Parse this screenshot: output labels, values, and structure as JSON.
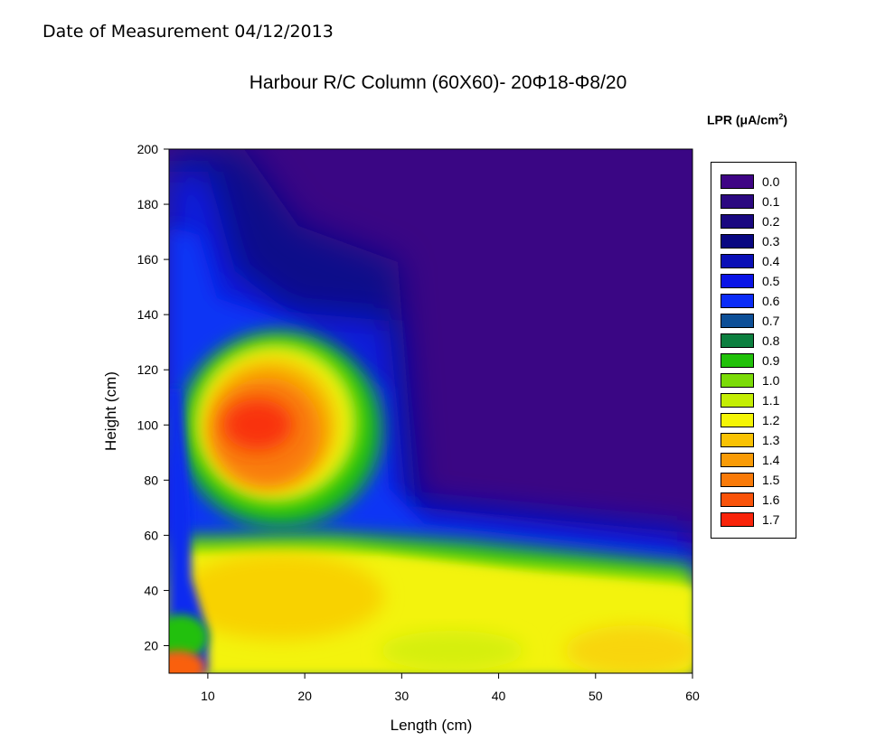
{
  "header": {
    "date_text": "Date of Measurement 04/12/2013"
  },
  "chart_data": {
    "type": "heatmap",
    "title": "Harbour R/C Column (60X60)- 20Φ18-Φ8/20",
    "xlabel": "Length (cm)",
    "ylabel": "Height (cm)",
    "xlim": [
      6,
      60
    ],
    "ylim": [
      10,
      200
    ],
    "xticks": [
      10,
      20,
      30,
      40,
      50,
      60
    ],
    "yticks": [
      20,
      40,
      60,
      80,
      100,
      120,
      140,
      160,
      180,
      200
    ],
    "grid": false,
    "legend_placement": "right",
    "legend": {
      "title": "LPR (μA/cm",
      "title_sup": "2",
      "title_close": ")",
      "levels": [
        {
          "label": "0.0",
          "value": 0.0,
          "color": "#3f0585"
        },
        {
          "label": "0.1",
          "value": 0.1,
          "color": "#2b0880"
        },
        {
          "label": "0.2",
          "value": 0.2,
          "color": "#190880"
        },
        {
          "label": "0.3",
          "value": 0.3,
          "color": "#090781"
        },
        {
          "label": "0.4",
          "value": 0.4,
          "color": "#0a0fb6"
        },
        {
          "label": "0.5",
          "value": 0.5,
          "color": "#0a14e6"
        },
        {
          "label": "0.6",
          "value": 0.6,
          "color": "#0b2cf7"
        },
        {
          "label": "0.7",
          "value": 0.7,
          "color": "#0d4f97"
        },
        {
          "label": "0.8",
          "value": 0.8,
          "color": "#0c7f3f"
        },
        {
          "label": "0.9",
          "value": 0.9,
          "color": "#21c10a"
        },
        {
          "label": "1.0",
          "value": 1.0,
          "color": "#7bdb08"
        },
        {
          "label": "1.1",
          "value": 1.1,
          "color": "#c4ee04"
        },
        {
          "label": "1.2",
          "value": 1.2,
          "color": "#f4f506"
        },
        {
          "label": "1.3",
          "value": 1.3,
          "color": "#f9c204"
        },
        {
          "label": "1.4",
          "value": 1.4,
          "color": "#f99b07"
        },
        {
          "label": "1.5",
          "value": 1.5,
          "color": "#f97a09"
        },
        {
          "label": "1.6",
          "value": 1.6,
          "color": "#f9530a"
        },
        {
          "label": "1.7",
          "value": 1.7,
          "color": "#f9240a"
        }
      ]
    },
    "contour_features": [
      {
        "x": 17,
        "y": 97,
        "value": 1.7
      },
      {
        "x": 15,
        "y": 80,
        "value": 1.55
      },
      {
        "x": 20,
        "y": 110,
        "value": 1.45
      },
      {
        "x": 40,
        "y": 100,
        "value": 0.0
      },
      {
        "x": 40,
        "y": 190,
        "value": 0.05
      },
      {
        "x": 20,
        "y": 35,
        "value": 1.3
      },
      {
        "x": 45,
        "y": 30,
        "value": 1.15
      },
      {
        "x": 55,
        "y": 20,
        "value": 1.25
      },
      {
        "x": 6,
        "y": 12,
        "value": 1.6
      },
      {
        "x": 8,
        "y": 90,
        "value": 0.5
      }
    ]
  }
}
